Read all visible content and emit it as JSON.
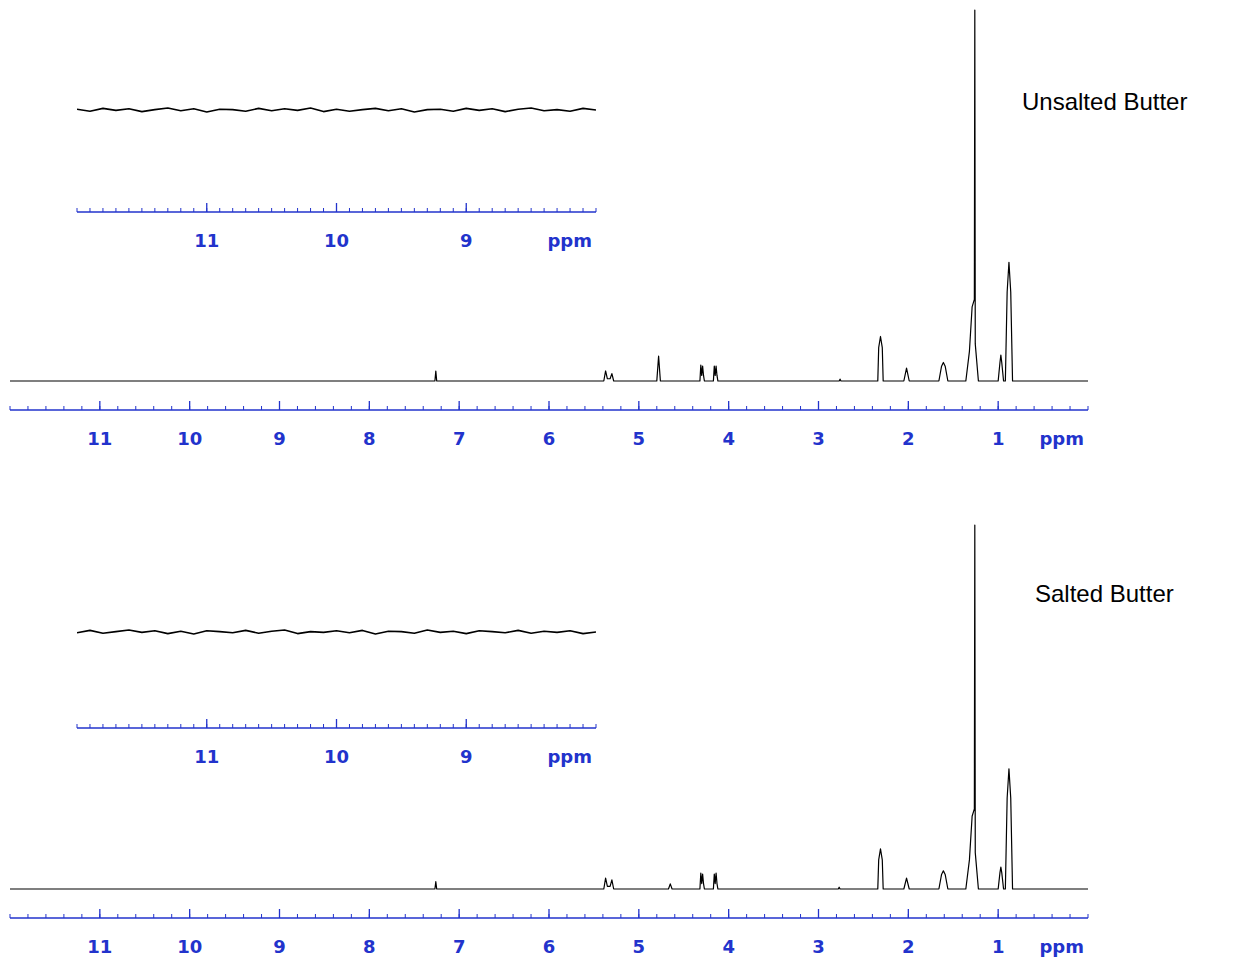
{
  "chart_data": [
    {
      "type": "line",
      "title": "Unsalted Butter",
      "x_label": "ppm",
      "xlim": [
        12,
        0
      ],
      "xticks": [
        11,
        10,
        9,
        8,
        7,
        6,
        5,
        4,
        3,
        2,
        1
      ],
      "ylim": [
        0,
        100
      ],
      "tick_labels": "x",
      "series": [
        {
          "color": "#000000",
          "x": [
            12,
            7.27,
            7.26,
            7.25,
            5.39,
            5.37,
            5.35,
            5.32,
            5.3,
            5.28,
            4.8,
            4.78,
            4.76,
            4.32,
            4.31,
            4.3,
            4.29,
            4.28,
            4.27,
            4.17,
            4.16,
            4.15,
            4.14,
            4.13,
            4.12,
            2.77,
            2.76,
            2.75,
            2.34,
            2.33,
            2.31,
            2.29,
            2.28,
            2.05,
            2.02,
            1.99,
            1.66,
            1.63,
            1.61,
            1.59,
            1.56,
            1.36,
            1.32,
            1.29,
            1.265,
            1.26,
            1.255,
            1.22,
            1.0,
            0.98,
            0.97,
            0.96,
            0.94,
            0.92,
            0.9,
            0.88,
            0.86,
            0.84,
            0
          ],
          "values": [
            0,
            0,
            2.7,
            0,
            0,
            2.7,
            0.6,
            0.6,
            2,
            0,
            0,
            6.7,
            0,
            0,
            4.3,
            1.5,
            4,
            1.5,
            0,
            0,
            4,
            1.5,
            4,
            1.5,
            0,
            0,
            0.5,
            0,
            0,
            9,
            12,
            9,
            0,
            0,
            3.5,
            0,
            0,
            4,
            5,
            4,
            0,
            0,
            8,
            20,
            22,
            100,
            10,
            0,
            0,
            5,
            7,
            5,
            0,
            0,
            24,
            32,
            24,
            0,
            0
          ]
        }
      ]
    },
    {
      "type": "line",
      "x_label": "ppm",
      "xlim": [
        12,
        8
      ],
      "xticks": [
        11,
        10,
        9
      ],
      "ylim": [
        -5,
        5
      ],
      "tick_labels": "x",
      "series": [
        {
          "color": "#000000",
          "x": [
            12,
            11.9,
            11.8,
            11.7,
            11.6,
            11.5,
            11.4,
            11.3,
            11.2,
            11.1,
            11,
            10.9,
            10.8,
            10.7,
            10.6,
            10.5,
            10.4,
            10.3,
            10.2,
            10.1,
            10,
            9.9,
            9.8,
            9.7,
            9.6,
            9.5,
            9.4,
            9.3,
            9.2,
            9.1,
            9,
            8.9,
            8.8,
            8.7,
            8.6,
            8.5,
            8.4,
            8.3,
            8.2,
            8.1,
            8
          ],
          "values": [
            0.2,
            -0.3,
            0.4,
            -0.1,
            0.3,
            -0.4,
            0.1,
            0.5,
            -0.2,
            0.3,
            -0.5,
            0.2,
            0.1,
            -0.3,
            0.4,
            -0.2,
            0.3,
            -0.1,
            0.5,
            -0.4,
            0.2,
            -0.3,
            0.1,
            0.4,
            -0.2,
            0.3,
            -0.5,
            0.1,
            0.2,
            -0.3,
            0.4,
            -0.1,
            0.3,
            -0.4,
            0.2,
            0.5,
            -0.2,
            0.1,
            -0.3,
            0.4,
            0
          ]
        }
      ]
    },
    {
      "type": "line",
      "title": "Salted Butter",
      "x_label": "ppm",
      "xlim": [
        12,
        0
      ],
      "xticks": [
        11,
        10,
        9,
        8,
        7,
        6,
        5,
        4,
        3,
        2,
        1
      ],
      "ylim": [
        0,
        100
      ],
      "tick_labels": "x",
      "series": [
        {
          "color": "#000000",
          "x": [
            12,
            7.27,
            7.26,
            7.25,
            5.39,
            5.37,
            5.35,
            5.32,
            5.3,
            5.28,
            4.67,
            4.65,
            4.63,
            4.32,
            4.31,
            4.3,
            4.29,
            4.28,
            4.27,
            4.17,
            4.16,
            4.15,
            4.14,
            4.13,
            4.12,
            2.78,
            2.77,
            2.76,
            2.34,
            2.33,
            2.31,
            2.29,
            2.28,
            2.05,
            2.02,
            1.99,
            1.66,
            1.63,
            1.61,
            1.59,
            1.56,
            1.36,
            1.32,
            1.29,
            1.265,
            1.26,
            1.255,
            1.22,
            1.0,
            0.98,
            0.97,
            0.96,
            0.94,
            0.92,
            0.9,
            0.88,
            0.86,
            0.84,
            0
          ],
          "values": [
            0,
            0,
            2,
            0,
            0,
            3,
            0.7,
            0.7,
            2.5,
            0,
            0,
            1.4,
            0,
            0,
            4.4,
            1.5,
            4.1,
            1.5,
            0,
            0,
            4.1,
            1.5,
            4.4,
            1.5,
            0,
            0,
            0.5,
            0,
            0,
            8,
            11,
            8,
            0,
            0,
            3,
            0,
            0,
            4,
            5,
            4,
            0,
            0,
            8,
            20,
            22,
            100,
            10,
            0,
            0,
            4.5,
            6,
            4.5,
            0,
            0,
            25,
            33,
            25,
            0,
            0
          ]
        }
      ]
    },
    {
      "type": "line",
      "x_label": "ppm",
      "xlim": [
        12,
        8
      ],
      "xticks": [
        11,
        10,
        9
      ],
      "ylim": [
        -5,
        5
      ],
      "tick_labels": "x",
      "series": [
        {
          "color": "#000000",
          "x": [
            12,
            11.9,
            11.8,
            11.7,
            11.6,
            11.5,
            11.4,
            11.3,
            11.2,
            11.1,
            11,
            10.9,
            10.8,
            10.7,
            10.6,
            10.5,
            10.4,
            10.3,
            10.2,
            10.1,
            10,
            9.9,
            9.8,
            9.7,
            9.6,
            9.5,
            9.4,
            9.3,
            9.2,
            9.1,
            9,
            8.9,
            8.8,
            8.7,
            8.6,
            8.5,
            8.4,
            8.3,
            8.2,
            8.1,
            8
          ],
          "values": [
            -0.2,
            0.4,
            -0.3,
            0.1,
            0.5,
            -0.1,
            0.3,
            -0.4,
            0.2,
            -0.5,
            0.3,
            0.1,
            -0.2,
            0.4,
            -0.3,
            0.2,
            0.5,
            -0.4,
            0.1,
            -0.1,
            0.3,
            -0.2,
            0.4,
            -0.5,
            0.2,
            0.1,
            -0.3,
            0.5,
            -0.1,
            0.2,
            -0.4,
            0.3,
            0.1,
            -0.2,
            0.4,
            -0.3,
            0.2,
            -0.1,
            0.3,
            -0.4,
            0
          ]
        }
      ]
    }
  ]
}
